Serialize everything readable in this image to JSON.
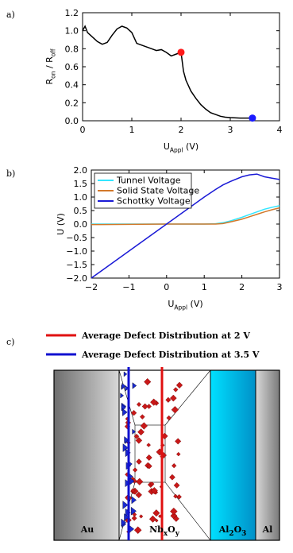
{
  "panel_labels": [
    "a)",
    "b)",
    "c)"
  ],
  "chart_data": [
    {
      "type": "line",
      "xlabel": [
        "U",
        "Appl",
        " (V)"
      ],
      "ylabel": [
        "R",
        "on",
        " / R",
        "off"
      ],
      "x": [
        0,
        0.05,
        0.1,
        0.2,
        0.3,
        0.4,
        0.5,
        0.6,
        0.7,
        0.8,
        0.9,
        1.0,
        1.1,
        1.2,
        1.3,
        1.4,
        1.5,
        1.6,
        1.7,
        1.8,
        1.9,
        2.0,
        2.05,
        2.1,
        2.2,
        2.3,
        2.4,
        2.5,
        2.6,
        2.7,
        2.8,
        2.9,
        3.0,
        3.2,
        3.45
      ],
      "series": [
        {
          "color": "#000000",
          "values": [
            1.0,
            1.05,
            0.98,
            0.93,
            0.88,
            0.85,
            0.87,
            0.95,
            1.02,
            1.05,
            1.03,
            0.98,
            0.86,
            0.84,
            0.82,
            0.8,
            0.78,
            0.79,
            0.76,
            0.72,
            0.74,
            0.76,
            0.55,
            0.45,
            0.33,
            0.25,
            0.18,
            0.13,
            0.09,
            0.07,
            0.05,
            0.04,
            0.035,
            0.03,
            0.03
          ]
        }
      ],
      "points": [
        {
          "x": 2.0,
          "y": 0.76,
          "color": "#ff1a1a"
        },
        {
          "x": 3.45,
          "y": 0.03,
          "color": "#1a1aff"
        }
      ],
      "xlim": [
        0,
        4
      ],
      "xticks": [
        0,
        1,
        2,
        3,
        4
      ],
      "ylim": [
        0,
        1.2
      ],
      "yticks": [
        {
          "value": 0,
          "label": "0.0"
        },
        {
          "value": 0.2,
          "label": "0.2"
        },
        {
          "value": 0.4,
          "label": "0.4"
        },
        {
          "value": 0.6,
          "label": "0.6"
        },
        {
          "value": 0.8,
          "label": "0.8"
        },
        {
          "value": 1.0,
          "label": "1.0"
        },
        {
          "value": 1.2,
          "label": "1.2"
        }
      ]
    },
    {
      "type": "line",
      "xlabel": [
        "U",
        "Appl",
        " (V)"
      ],
      "ylabel": "U (V)",
      "legend": "upper left",
      "x": [
        -2,
        -1,
        0,
        1,
        1.3,
        1.5,
        1.7,
        2.0,
        2.2,
        2.4,
        2.6,
        2.8,
        3.0
      ],
      "series": [
        {
          "name": "Tunnel Voltage",
          "color": "#33e6ff",
          "values": [
            0,
            0,
            0,
            0,
            0.01,
            0.05,
            0.12,
            0.25,
            0.35,
            0.45,
            0.55,
            0.62,
            0.68
          ]
        },
        {
          "name": "Solid State Voltage",
          "color": "#d2782a",
          "values": [
            -0.02,
            -0.01,
            0,
            0,
            0,
            0.02,
            0.08,
            0.18,
            0.27,
            0.36,
            0.45,
            0.53,
            0.6
          ]
        },
        {
          "name": "Schottky Voltage",
          "color": "#1a1ad6",
          "values": [
            -2,
            -1,
            0,
            1,
            1.28,
            1.45,
            1.58,
            1.75,
            1.82,
            1.85,
            1.75,
            1.7,
            1.65
          ]
        }
      ],
      "xlim": [
        -2,
        3
      ],
      "xticks": [
        {
          "value": -2,
          "label": "−2"
        },
        {
          "value": -1,
          "label": "−1"
        },
        0,
        1,
        2,
        3
      ],
      "ylim": [
        -2,
        2
      ],
      "yticks": [
        {
          "value": -2,
          "label": "−2.0"
        },
        {
          "value": -1.5,
          "label": "−1.5"
        },
        {
          "value": -1,
          "label": "−1.0"
        },
        {
          "value": -0.5,
          "label": "−0.5"
        },
        {
          "value": 0,
          "label": "0.0"
        },
        {
          "value": 0.5,
          "label": "0.5"
        },
        {
          "value": 1,
          "label": "1.0"
        },
        {
          "value": 1.5,
          "label": "1.5"
        },
        {
          "value": 2,
          "label": "2.0"
        }
      ]
    }
  ],
  "diagram": {
    "legend": [
      {
        "label": "Average Defect Distribution at 2 V",
        "color": "#e01010"
      },
      {
        "label": "Average Defect Distribution at 3.5 V",
        "color": "#1010d0"
      }
    ],
    "layers": [
      [
        "Au"
      ],
      [
        "Nb",
        "x",
        "O",
        "y"
      ],
      [
        "Al",
        "2",
        "O",
        "3"
      ],
      [
        "Al"
      ]
    ]
  }
}
